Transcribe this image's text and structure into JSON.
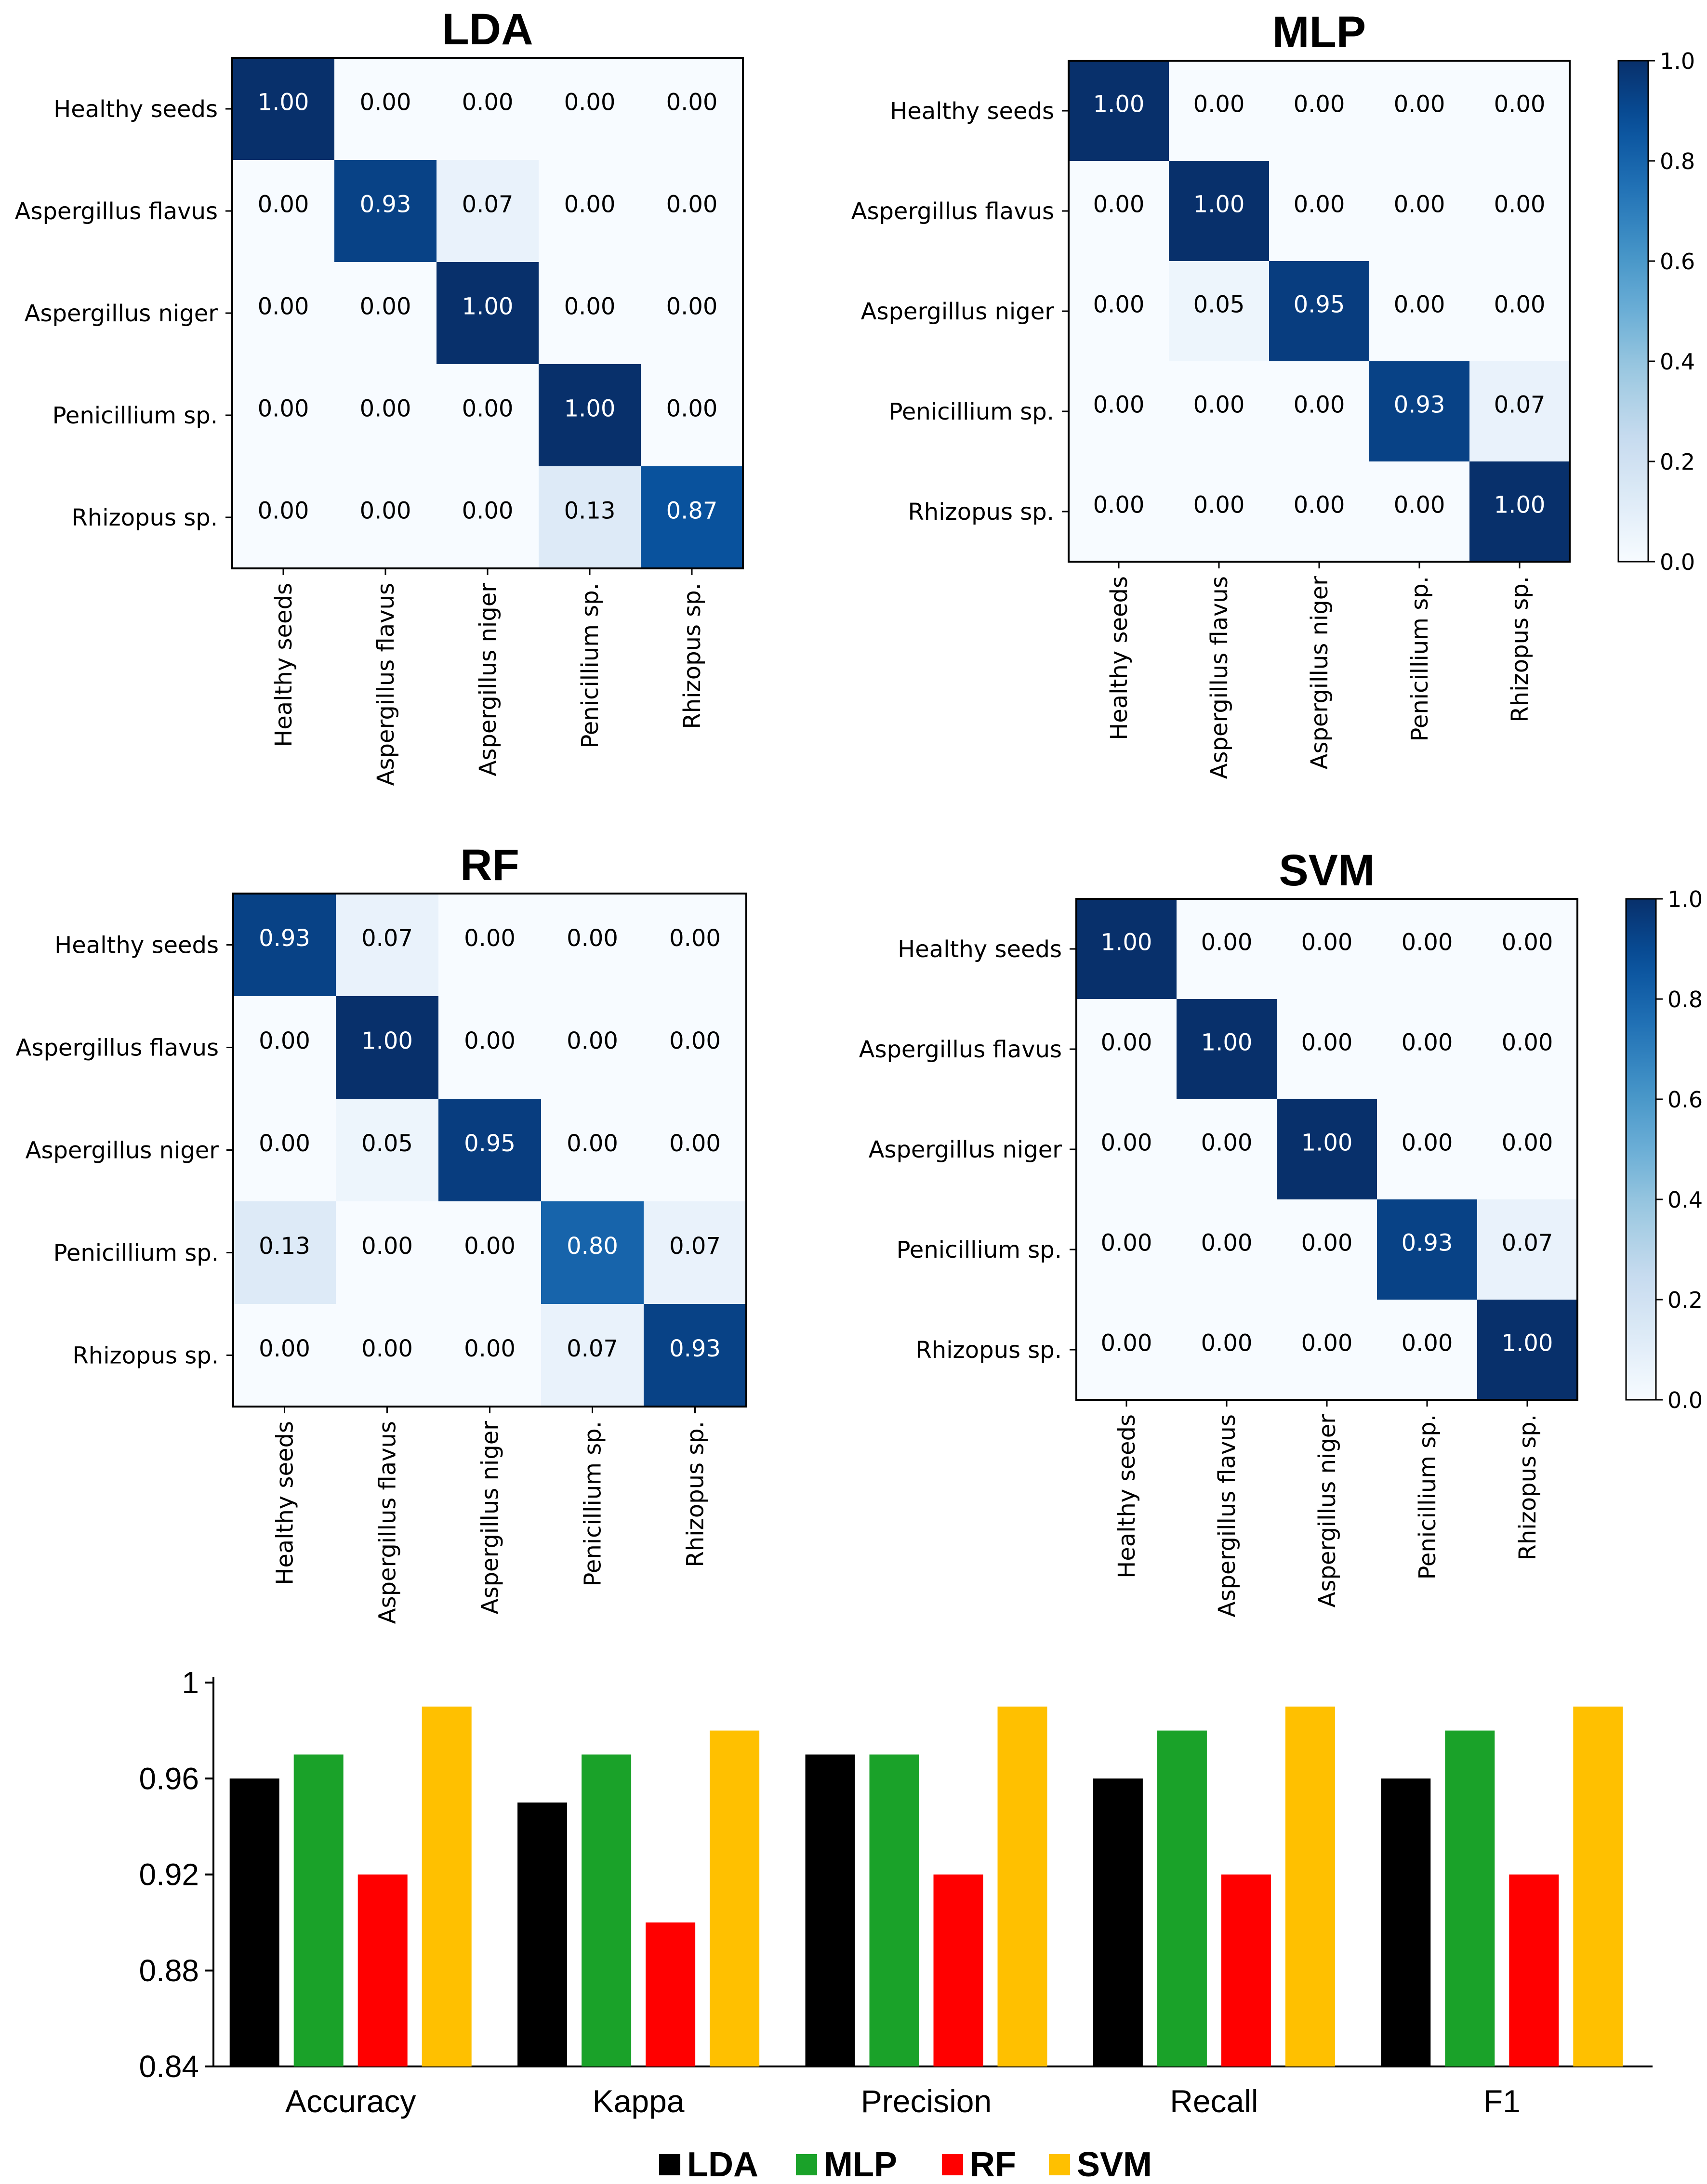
{
  "chart_data": [
    {
      "type": "heatmap",
      "title": "LDA",
      "row_labels": [
        "Healthy seeds",
        "Aspergillus flavus",
        "Aspergillus niger",
        "Penicillium sp.",
        "Rhizopus sp."
      ],
      "col_labels": [
        "Healthy seeds",
        "Aspergillus flavus",
        "Aspergillus niger",
        "Penicillium sp.",
        "Rhizopus sp."
      ],
      "values": [
        [
          1.0,
          0.0,
          0.0,
          0.0,
          0.0
        ],
        [
          0.0,
          0.93,
          0.07,
          0.0,
          0.0
        ],
        [
          0.0,
          0.0,
          1.0,
          0.0,
          0.0
        ],
        [
          0.0,
          0.0,
          0.0,
          1.0,
          0.0
        ],
        [
          0.0,
          0.0,
          0.0,
          0.13,
          0.87
        ]
      ],
      "colorbar": false
    },
    {
      "type": "heatmap",
      "title": "MLP",
      "row_labels": [
        "Healthy seeds",
        "Aspergillus flavus",
        "Aspergillus niger",
        "Penicillium sp.",
        "Rhizopus sp."
      ],
      "col_labels": [
        "Healthy seeds",
        "Aspergillus flavus",
        "Aspergillus niger",
        "Penicillium sp.",
        "Rhizopus sp."
      ],
      "values": [
        [
          1.0,
          0.0,
          0.0,
          0.0,
          0.0
        ],
        [
          0.0,
          1.0,
          0.0,
          0.0,
          0.0
        ],
        [
          0.0,
          0.05,
          0.95,
          0.0,
          0.0
        ],
        [
          0.0,
          0.0,
          0.0,
          0.93,
          0.07
        ],
        [
          0.0,
          0.0,
          0.0,
          0.0,
          1.0
        ]
      ],
      "colorbar": true,
      "colorbar_ticks": [
        "0.0",
        "0.2",
        "0.4",
        "0.6",
        "0.8",
        "1.0"
      ]
    },
    {
      "type": "heatmap",
      "title": "RF",
      "row_labels": [
        "Healthy seeds",
        "Aspergillus flavus",
        "Aspergillus niger",
        "Penicillium sp.",
        "Rhizopus sp."
      ],
      "col_labels": [
        "Healthy seeds",
        "Aspergillus flavus",
        "Aspergillus niger",
        "Penicillium sp.",
        "Rhizopus sp."
      ],
      "values": [
        [
          0.93,
          0.07,
          0.0,
          0.0,
          0.0
        ],
        [
          0.0,
          1.0,
          0.0,
          0.0,
          0.0
        ],
        [
          0.0,
          0.05,
          0.95,
          0.0,
          0.0
        ],
        [
          0.13,
          0.0,
          0.0,
          0.8,
          0.07
        ],
        [
          0.0,
          0.0,
          0.0,
          0.07,
          0.93
        ]
      ],
      "colorbar": false
    },
    {
      "type": "heatmap",
      "title": "SVM",
      "row_labels": [
        "Healthy seeds",
        "Aspergillus flavus",
        "Aspergillus niger",
        "Penicillium sp.",
        "Rhizopus sp."
      ],
      "col_labels": [
        "Healthy seeds",
        "Aspergillus flavus",
        "Aspergillus niger",
        "Penicillium sp.",
        "Rhizopus sp."
      ],
      "values": [
        [
          1.0,
          0.0,
          0.0,
          0.0,
          0.0
        ],
        [
          0.0,
          1.0,
          0.0,
          0.0,
          0.0
        ],
        [
          0.0,
          0.0,
          1.0,
          0.0,
          0.0
        ],
        [
          0.0,
          0.0,
          0.0,
          0.93,
          0.07
        ],
        [
          0.0,
          0.0,
          0.0,
          0.0,
          1.0
        ]
      ],
      "colorbar": true,
      "colorbar_ticks": [
        "0.0",
        "0.2",
        "0.4",
        "0.6",
        "0.8",
        "1.0"
      ]
    },
    {
      "type": "bar",
      "title": "",
      "categories": [
        "Accuracy",
        "Kappa",
        "Precision",
        "Recall",
        "F1"
      ],
      "series": [
        {
          "name": "LDA",
          "color": "#000000",
          "values": [
            0.96,
            0.95,
            0.97,
            0.96,
            0.96
          ]
        },
        {
          "name": "MLP",
          "color": "#1aa229",
          "values": [
            0.97,
            0.97,
            0.97,
            0.98,
            0.98
          ]
        },
        {
          "name": "RF",
          "color": "#ff0000",
          "values": [
            0.92,
            0.9,
            0.92,
            0.92,
            0.92
          ]
        },
        {
          "name": "SVM",
          "color": "#ffc000",
          "values": [
            0.99,
            0.98,
            0.99,
            0.99,
            0.99
          ]
        }
      ],
      "ylim": [
        0.84,
        1.0
      ],
      "yticks": [
        "0.84",
        "0.88",
        "0.92",
        "0.96",
        "1"
      ],
      "xlabel": "",
      "ylabel": "",
      "legend_position": "bottom-center"
    }
  ]
}
